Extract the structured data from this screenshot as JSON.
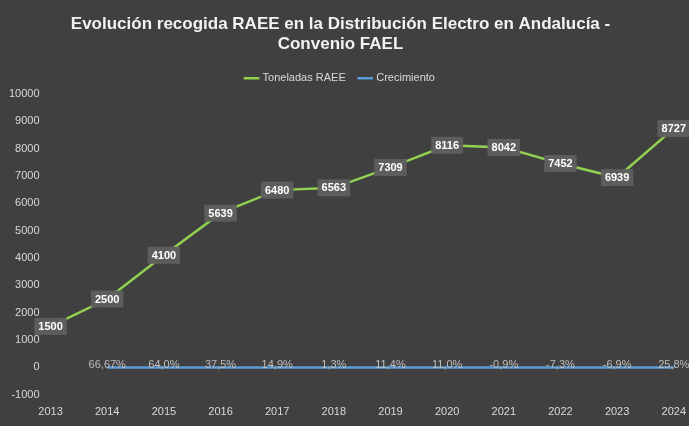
{
  "chart_data": {
    "type": "line",
    "title": "Evolución recogida RAEE en la Distribución Electro en Andalucía - Convenio FAEL",
    "categories": [
      "2013",
      "2014",
      "2015",
      "2016",
      "2017",
      "2018",
      "2019",
      "2020",
      "2021",
      "2022",
      "2023",
      "2024"
    ],
    "series": [
      {
        "name": "Toneladas RAEE",
        "color": "#92d050",
        "values": [
          1500,
          2500,
          4100,
          5639,
          6480,
          6563,
          7309,
          8116,
          8042,
          7452,
          6939,
          8727
        ]
      },
      {
        "name": "Crecimiento",
        "color": "#5b9bd5",
        "values": [
          null,
          0.6667,
          0.64,
          0.375,
          0.149,
          0.013,
          0.114,
          0.11,
          -0.009,
          -0.073,
          -0.069,
          0.258
        ],
        "value_labels": [
          null,
          "66,67%",
          "64,0%",
          "37,5%",
          "14,9%",
          "1,3%",
          "11,4%",
          "11,0%",
          "-0,9%",
          "-7,3%",
          "-6,9%",
          "25,8%"
        ]
      }
    ],
    "ylim": [
      -1000,
      10000
    ],
    "yticks": [
      -1000,
      0,
      1000,
      2000,
      3000,
      4000,
      5000,
      6000,
      7000,
      8000,
      9000,
      10000
    ],
    "grid": false,
    "legend": "top",
    "data_labels": true,
    "marker": "none"
  }
}
